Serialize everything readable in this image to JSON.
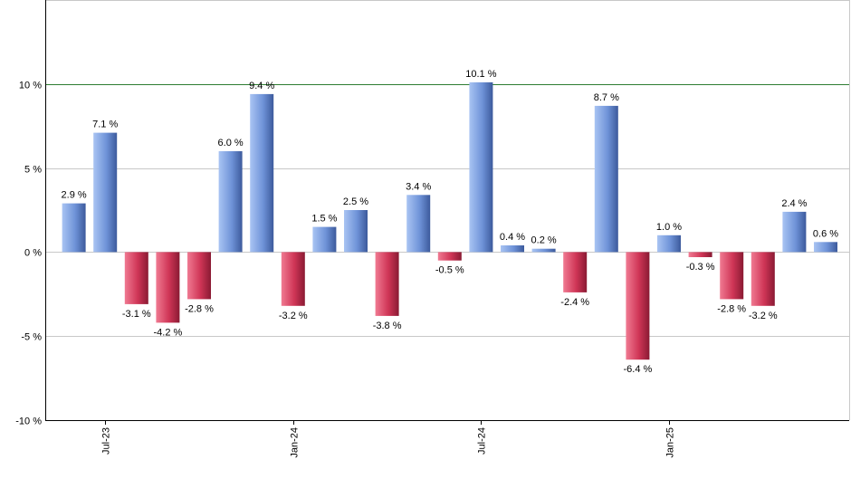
{
  "chart_data": {
    "type": "bar",
    "title": "",
    "xlabel": "",
    "ylabel": "",
    "ylim": [
      -10,
      15
    ],
    "y_ticks": [
      {
        "value": 10,
        "label": "10 %"
      },
      {
        "value": 5,
        "label": "5 %"
      },
      {
        "value": 0,
        "label": "0 %"
      },
      {
        "value": -5,
        "label": "-5 %"
      },
      {
        "value": -10,
        "label": "-10 %"
      }
    ],
    "x_ticks": [
      {
        "index": 1,
        "label": "Jul-23"
      },
      {
        "index": 7,
        "label": "Jan-24"
      },
      {
        "index": 13,
        "label": "Jul-24"
      },
      {
        "index": 19,
        "label": "Jan-25"
      }
    ],
    "reference_line": {
      "value": 10,
      "color": "#2e7d32"
    },
    "grid": true,
    "colors": {
      "positive": "#5b7fcf",
      "negative": "#c8314f",
      "grid": "#c8c8c8",
      "axis": "#000000"
    },
    "values": [
      2.9,
      7.1,
      -3.1,
      -4.2,
      -2.8,
      6.0,
      9.4,
      -3.2,
      1.5,
      2.5,
      -3.8,
      3.4,
      -0.5,
      10.1,
      0.4,
      0.2,
      -2.4,
      8.7,
      -6.4,
      1.0,
      -0.3,
      -2.8,
      -3.2,
      2.4,
      0.6
    ],
    "labels": [
      "2.9 %",
      "7.1 %",
      "-3.1 %",
      "-4.2 %",
      "-2.8 %",
      "6.0 %",
      "9.4 %",
      "-3.2 %",
      "1.5 %",
      "2.5 %",
      "-3.8 %",
      "3.4 %",
      "-0.5 %",
      "10.1 %",
      "0.4 %",
      "0.2 %",
      "-2.4 %",
      "8.7 %",
      "-6.4 %",
      "1.0 %",
      "-0.3 %",
      "-2.8 %",
      "-3.2 %",
      "2.4 %",
      "0.6 %"
    ]
  }
}
